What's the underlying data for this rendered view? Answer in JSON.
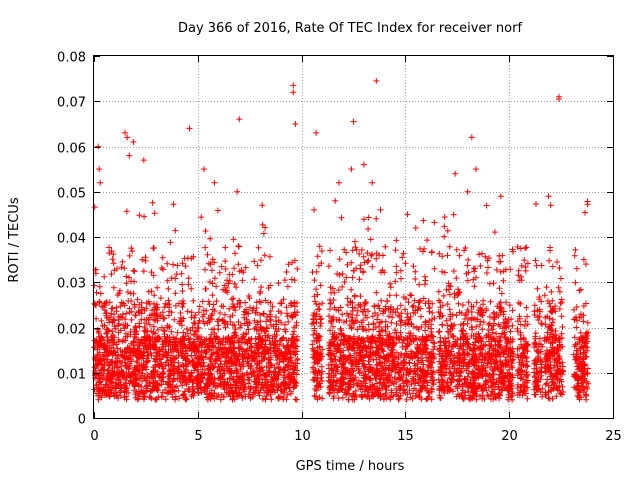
{
  "chart_data": {
    "type": "scatter",
    "title": "Day 366 of 2016, Rate Of TEC Index for receiver norf",
    "xlabel": "GPS time / hours",
    "ylabel": "ROTI / TECUs",
    "xlim": [
      0,
      25
    ],
    "ylim": [
      0,
      0.08
    ],
    "xticks": [
      0,
      5,
      10,
      15,
      20,
      25
    ],
    "yticks": [
      0,
      0.01,
      0.02,
      0.03,
      0.04,
      0.05,
      0.06,
      0.07,
      0.08
    ],
    "xtick_labels": [
      "0",
      "5",
      "10",
      "15",
      "20",
      "25"
    ],
    "ytick_labels": [
      "0",
      "0.01",
      "0.02",
      "0.03",
      "0.04",
      "0.05",
      "0.06",
      "0.07",
      "0.08"
    ],
    "grid": true,
    "marker": "plus",
    "color": "#ff0000",
    "series": [
      {
        "name": "ROTI",
        "segments": [
          [
            0.0,
            9.8
          ],
          [
            10.5,
            11.0
          ],
          [
            11.3,
            16.4
          ],
          [
            16.6,
            20.2
          ],
          [
            20.4,
            20.9
          ],
          [
            21.2,
            21.6
          ],
          [
            21.7,
            22.6
          ],
          [
            23.1,
            23.8
          ]
        ],
        "outliers": [
          [
            0.2,
            0.06
          ],
          [
            0.25,
            0.055
          ],
          [
            0.3,
            0.052
          ],
          [
            1.5,
            0.063
          ],
          [
            1.6,
            0.062
          ],
          [
            1.7,
            0.058
          ],
          [
            1.9,
            0.061
          ],
          [
            2.4,
            0.057
          ],
          [
            4.6,
            0.064
          ],
          [
            5.3,
            0.055
          ],
          [
            5.8,
            0.052
          ],
          [
            7.0,
            0.066
          ],
          [
            6.9,
            0.05
          ],
          [
            8.1,
            0.047
          ],
          [
            9.6,
            0.0735
          ],
          [
            9.6,
            0.072
          ],
          [
            9.7,
            0.065
          ],
          [
            10.7,
            0.063
          ],
          [
            10.6,
            0.046
          ],
          [
            11.8,
            0.052
          ],
          [
            12.5,
            0.0655
          ],
          [
            12.4,
            0.055
          ],
          [
            13.0,
            0.056
          ],
          [
            13.6,
            0.0745
          ],
          [
            13.4,
            0.052
          ],
          [
            13.8,
            0.046
          ],
          [
            15.1,
            0.045
          ],
          [
            15.5,
            0.042
          ],
          [
            17.4,
            0.054
          ],
          [
            18.2,
            0.062
          ],
          [
            18.0,
            0.05
          ],
          [
            18.4,
            0.055
          ],
          [
            19.6,
            0.049
          ],
          [
            21.9,
            0.049
          ],
          [
            22.0,
            0.047
          ],
          [
            22.4,
            0.071
          ],
          [
            22.4,
            0.0705
          ],
          [
            23.6,
            0.035
          ],
          [
            23.7,
            0.034
          ]
        ]
      }
    ]
  }
}
